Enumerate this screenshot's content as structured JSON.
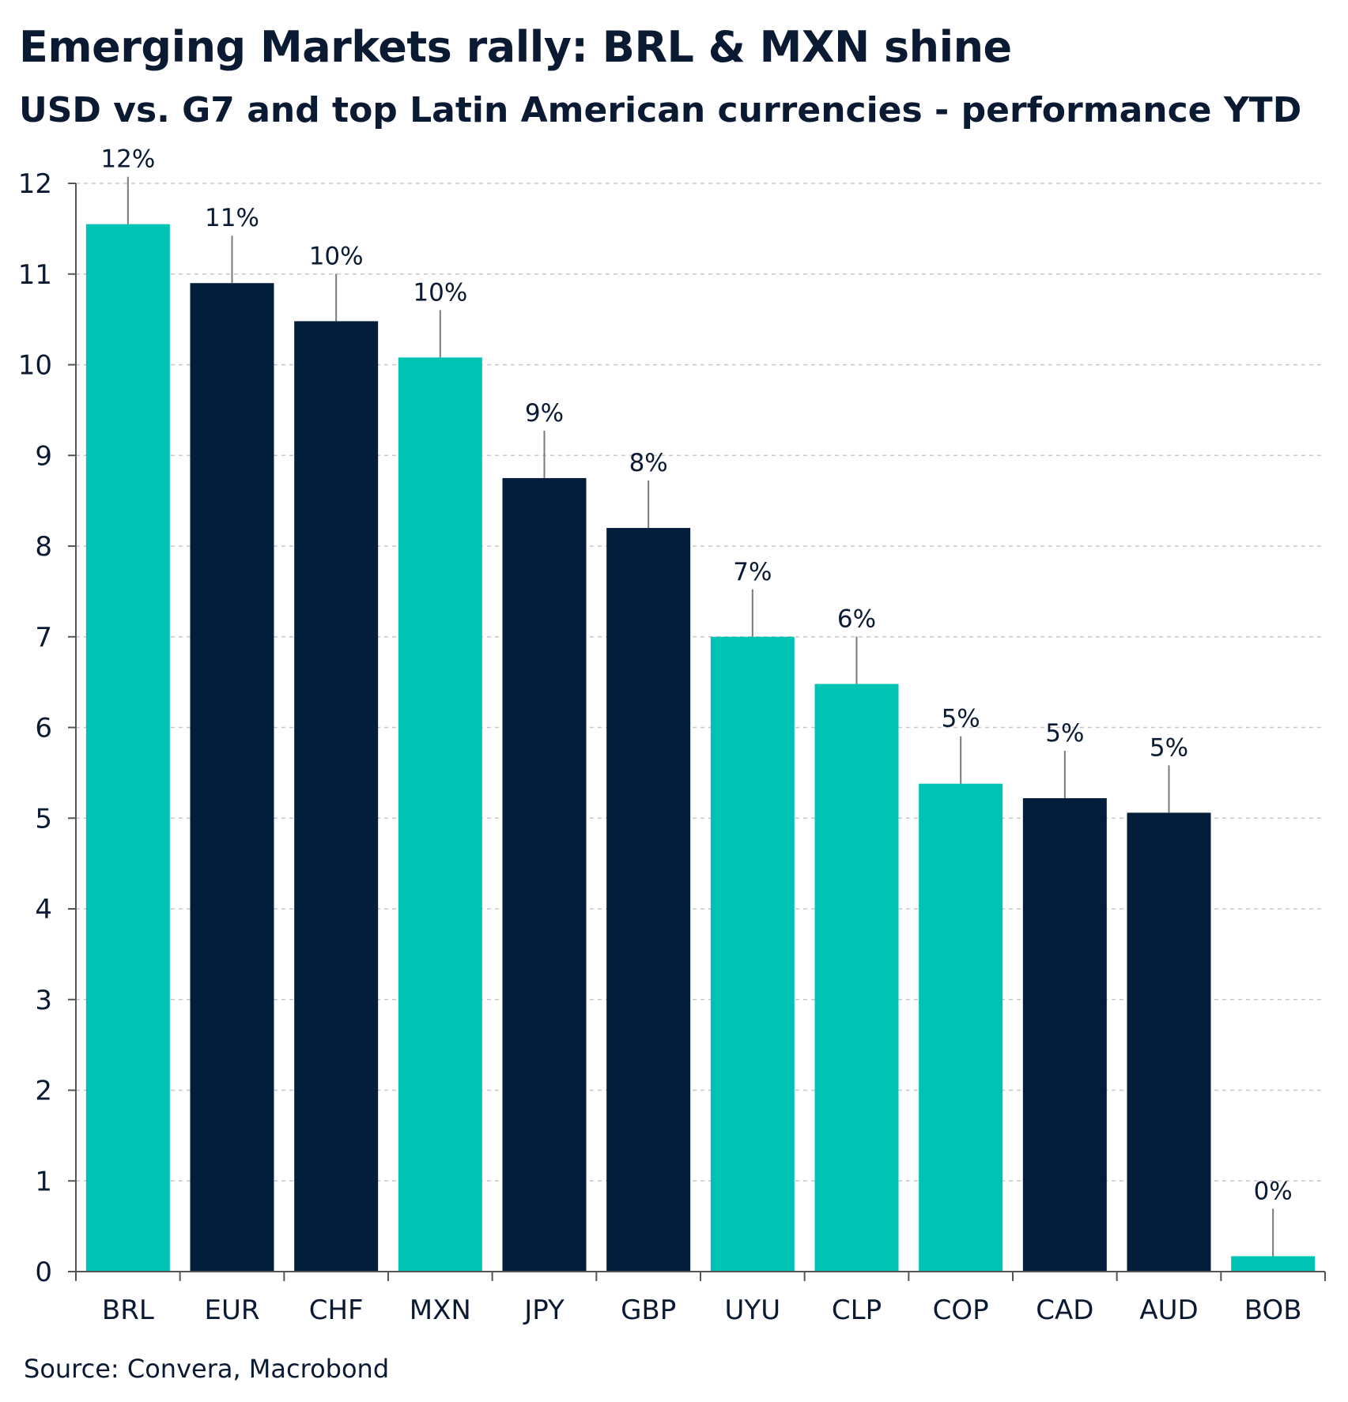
{
  "chart_data": {
    "type": "bar",
    "title": "Emerging Markets rally: BRL & MXN shine",
    "subtitle": "USD vs. G7 and top Latin American currencies - performance YTD",
    "source": "Source: Convera, Macrobond",
    "xlabel": "",
    "ylabel": "",
    "ylim": [
      0,
      12
    ],
    "yticks": [
      0,
      1,
      2,
      3,
      4,
      5,
      6,
      7,
      8,
      9,
      10,
      11,
      12
    ],
    "grid": true,
    "categories": [
      "BRL",
      "EUR",
      "CHF",
      "MXN",
      "JPY",
      "GBP",
      "UYU",
      "CLP",
      "COP",
      "CAD",
      "AUD",
      "BOB"
    ],
    "values": [
      11.55,
      10.9,
      10.48,
      10.08,
      8.75,
      8.2,
      7.0,
      6.48,
      5.38,
      5.22,
      5.06,
      0.17
    ],
    "data_labels": [
      "12%",
      "11%",
      "10%",
      "10%",
      "9%",
      "8%",
      "7%",
      "6%",
      "5%",
      "5%",
      "5%",
      "0%"
    ],
    "groups": [
      "latam",
      "g7",
      "g7",
      "latam",
      "g7",
      "g7",
      "latam",
      "latam",
      "latam",
      "g7",
      "g7",
      "latam"
    ],
    "colors": {
      "latam": "#00c4b3",
      "g7": "#031e3a"
    }
  }
}
